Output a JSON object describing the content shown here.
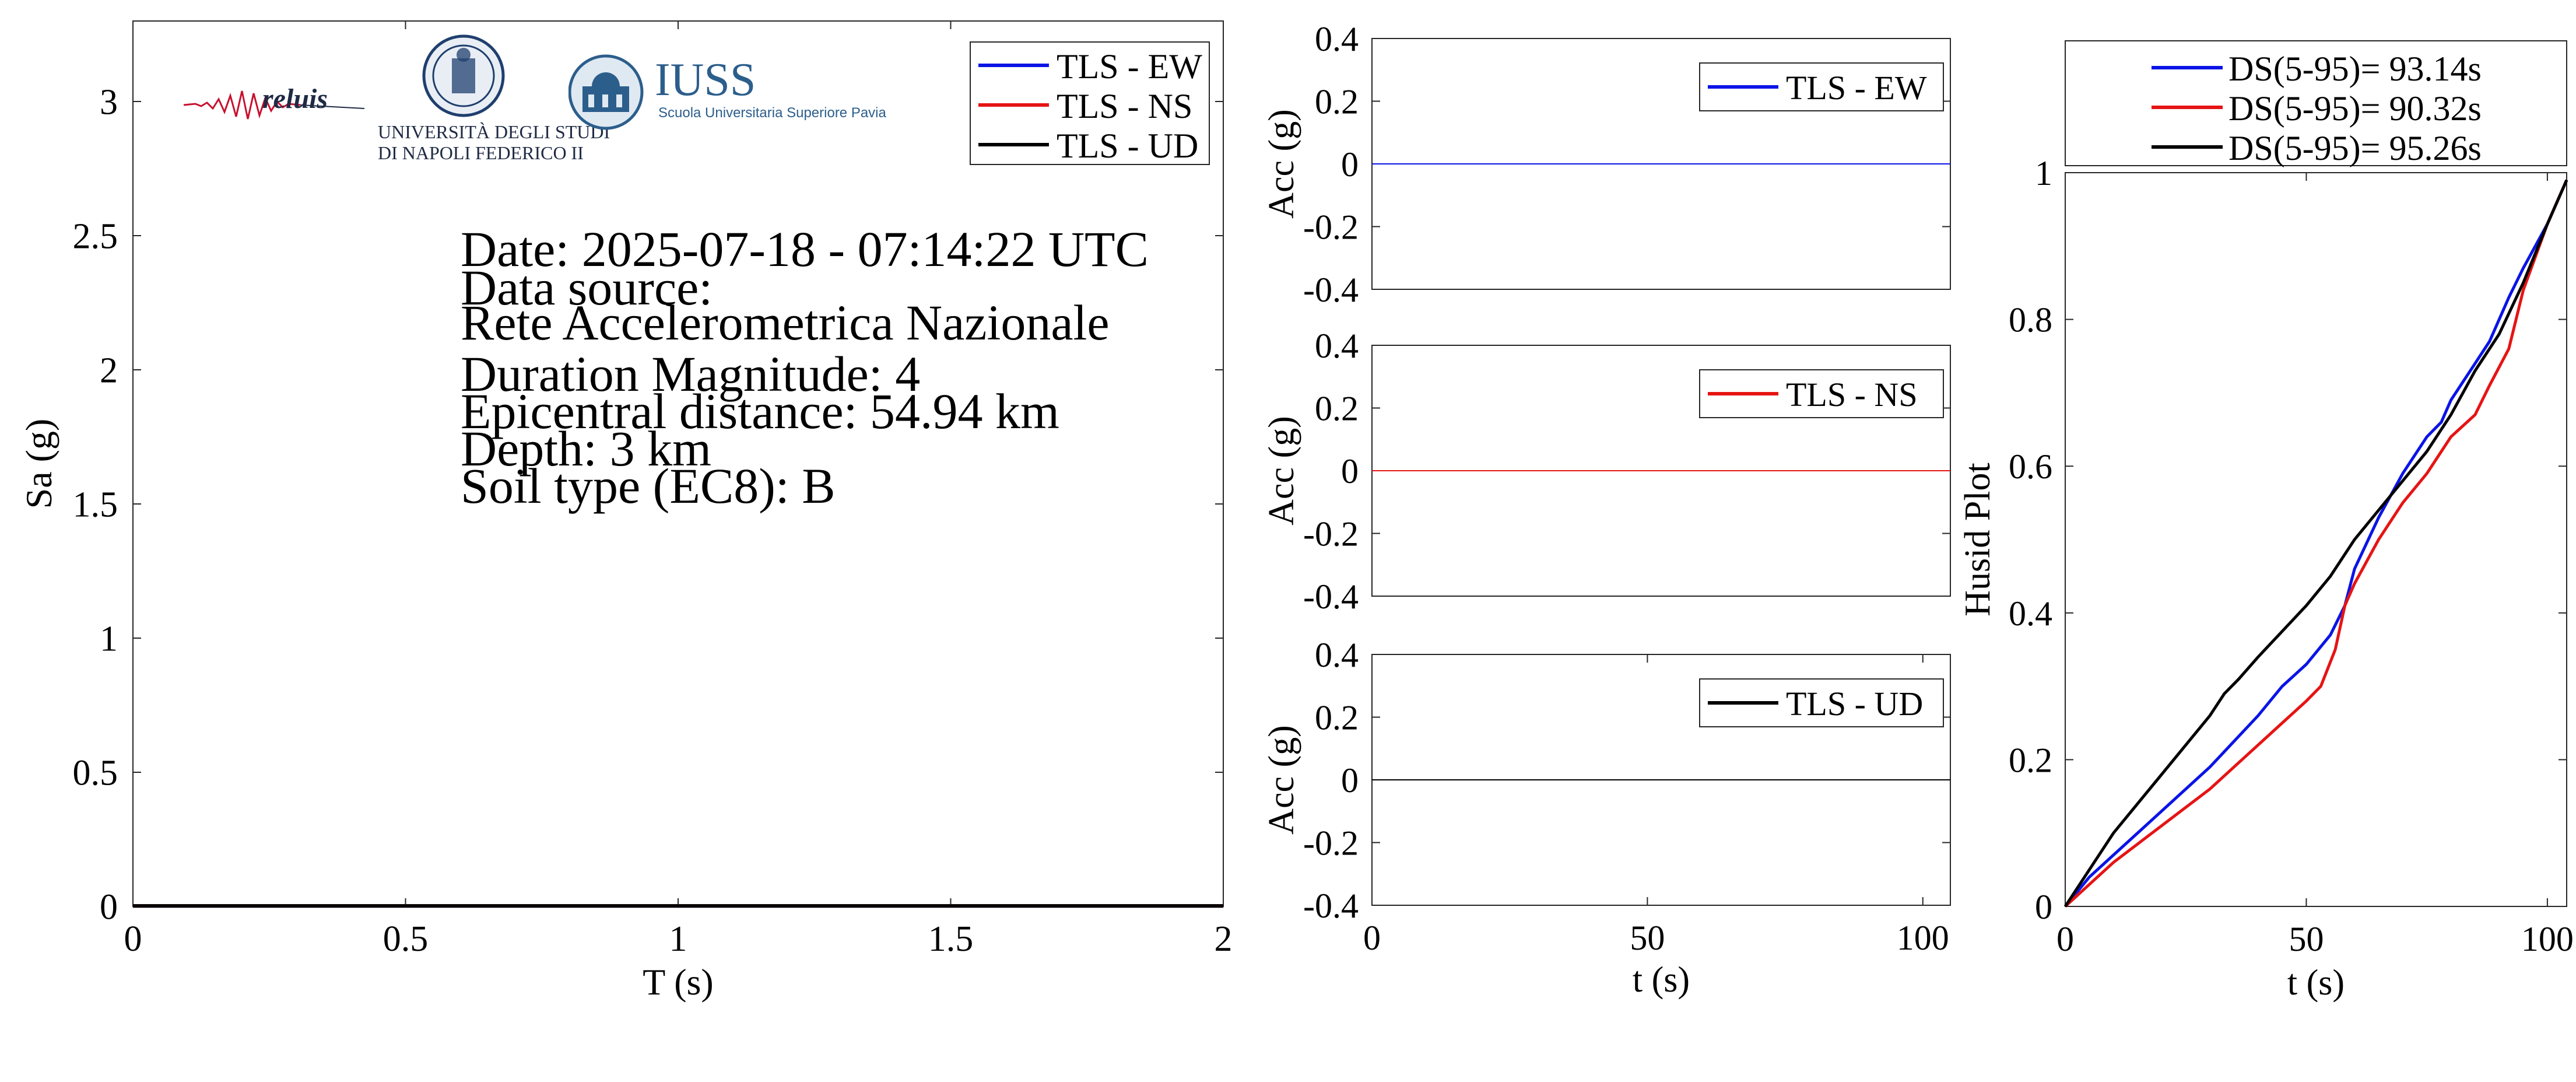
{
  "info": {
    "date": "Date: 2025-07-18 - 07:14:22 UTC",
    "source_label": "Data source:",
    "source": "Rete Accelerometrica Nazionale",
    "magnitude": "Duration Magnitude: 4",
    "distance": "Epicentral distance: 54.94 km",
    "depth": "Depth: 3 km",
    "soil": "Soil type (EC8): B"
  },
  "logos": {
    "reluis": "reluis",
    "unina_line1": "UNIVERSITÀ DEGLI STUDI",
    "unina_line2": "DI NAPOLI FEDERICO II",
    "iuss": "IUSS",
    "iuss_sub": "Scuola Universitaria Superiore Pavia"
  },
  "colors": {
    "ew": "#0a14e6",
    "ns": "#e61414",
    "ud": "#000000"
  },
  "chart_data": [
    {
      "type": "line",
      "id": "spectrum",
      "xlabel": "T (s)",
      "ylabel": "Sa (g)",
      "xlim": [
        0,
        2
      ],
      "ylim": [
        0,
        3.3
      ],
      "xticks": [
        0,
        0.5,
        1,
        1.5,
        2
      ],
      "xtick_labels": [
        "0",
        "0.5",
        "1",
        "1.5",
        "2"
      ],
      "yticks": [
        0,
        0.5,
        1,
        1.5,
        2,
        2.5,
        3
      ],
      "ytick_labels": [
        "0",
        "0.5",
        "1",
        "1.5",
        "2",
        "2.5",
        "3"
      ],
      "legend_position": "top-right",
      "series": [
        {
          "name": "TLS - EW",
          "color": "#0a14e6",
          "x": [
            0,
            2
          ],
          "y": [
            0.002,
            0.002
          ]
        },
        {
          "name": "TLS - NS",
          "color": "#e61414",
          "x": [
            0,
            2
          ],
          "y": [
            0.002,
            0.002
          ]
        },
        {
          "name": "TLS - UD",
          "color": "#000000",
          "x": [
            0,
            2
          ],
          "y": [
            0.002,
            0.002
          ]
        }
      ]
    },
    {
      "type": "line",
      "id": "acc_ew",
      "xlabel": "",
      "ylabel": "Acc (g)",
      "xlim": [
        0,
        105
      ],
      "ylim": [
        -0.4,
        0.4
      ],
      "yticks": [
        -0.4,
        -0.2,
        0,
        0.2,
        0.4
      ],
      "ytick_labels": [
        "-0.4",
        "-0.2",
        "0",
        "0.2",
        "0.4"
      ],
      "legend_position": "top-right",
      "series": [
        {
          "name": "TLS - EW",
          "color": "#0a14e6",
          "x": [
            0,
            105
          ],
          "y": [
            0,
            0
          ]
        }
      ]
    },
    {
      "type": "line",
      "id": "acc_ns",
      "xlabel": "",
      "ylabel": "Acc (g)",
      "xlim": [
        0,
        105
      ],
      "ylim": [
        -0.4,
        0.4
      ],
      "yticks": [
        -0.4,
        -0.2,
        0,
        0.2,
        0.4
      ],
      "ytick_labels": [
        "-0.4",
        "-0.2",
        "0",
        "0.2",
        "0.4"
      ],
      "legend_position": "top-right",
      "series": [
        {
          "name": "TLS - NS",
          "color": "#e61414",
          "x": [
            0,
            105
          ],
          "y": [
            0,
            0
          ]
        }
      ]
    },
    {
      "type": "line",
      "id": "acc_ud",
      "xlabel": "t (s)",
      "ylabel": "Acc (g)",
      "xlim": [
        0,
        105
      ],
      "ylim": [
        -0.4,
        0.4
      ],
      "xticks": [
        0,
        50,
        100
      ],
      "xtick_labels": [
        "0",
        "50",
        "100"
      ],
      "yticks": [
        -0.4,
        -0.2,
        0,
        0.2,
        0.4
      ],
      "ytick_labels": [
        "-0.4",
        "-0.2",
        "0",
        "0.2",
        "0.4"
      ],
      "legend_position": "top-right",
      "series": [
        {
          "name": "TLS - UD",
          "color": "#000000",
          "x": [
            0,
            105
          ],
          "y": [
            0,
            0
          ]
        }
      ]
    },
    {
      "type": "line",
      "id": "husid",
      "xlabel": "t (s)",
      "ylabel": "Husid Plot",
      "xlim": [
        0,
        104
      ],
      "ylim": [
        0,
        1
      ],
      "xticks": [
        0,
        50,
        100
      ],
      "xtick_labels": [
        "0",
        "50",
        "100"
      ],
      "yticks": [
        0,
        0.2,
        0.4,
        0.6,
        0.8,
        1
      ],
      "ytick_labels": [
        "0",
        "0.2",
        "0.4",
        "0.6",
        "0.8",
        "1"
      ],
      "legend_position": "above",
      "series": [
        {
          "name": "DS(5-95)= 93.14s",
          "color": "#0a14e6",
          "x": [
            0,
            5,
            10,
            20,
            30,
            40,
            45,
            50,
            55,
            58,
            60,
            65,
            70,
            75,
            78,
            80,
            85,
            88,
            92,
            95,
            100,
            104
          ],
          "y": [
            0,
            0.04,
            0.07,
            0.13,
            0.19,
            0.26,
            0.3,
            0.33,
            0.37,
            0.41,
            0.46,
            0.53,
            0.59,
            0.64,
            0.66,
            0.69,
            0.74,
            0.77,
            0.83,
            0.87,
            0.93,
            0.99
          ]
        },
        {
          "name": "DS(5-95)= 90.32s",
          "color": "#e61414",
          "x": [
            0,
            5,
            10,
            20,
            30,
            40,
            45,
            50,
            53,
            56,
            58,
            60,
            65,
            70,
            75,
            80,
            85,
            88,
            92,
            95,
            100,
            104
          ],
          "y": [
            0,
            0.03,
            0.06,
            0.11,
            0.16,
            0.22,
            0.25,
            0.28,
            0.3,
            0.35,
            0.41,
            0.44,
            0.5,
            0.55,
            0.59,
            0.64,
            0.67,
            0.71,
            0.76,
            0.84,
            0.93,
            0.99
          ]
        },
        {
          "name": "DS(5-95)= 95.26s",
          "color": "#000000",
          "x": [
            0,
            5,
            10,
            20,
            30,
            33,
            36,
            40,
            50,
            55,
            60,
            65,
            70,
            75,
            80,
            85,
            90,
            95,
            100,
            104
          ],
          "y": [
            0,
            0.05,
            0.1,
            0.18,
            0.26,
            0.29,
            0.31,
            0.34,
            0.41,
            0.45,
            0.5,
            0.54,
            0.58,
            0.62,
            0.67,
            0.73,
            0.78,
            0.85,
            0.93,
            0.99
          ]
        }
      ]
    }
  ]
}
